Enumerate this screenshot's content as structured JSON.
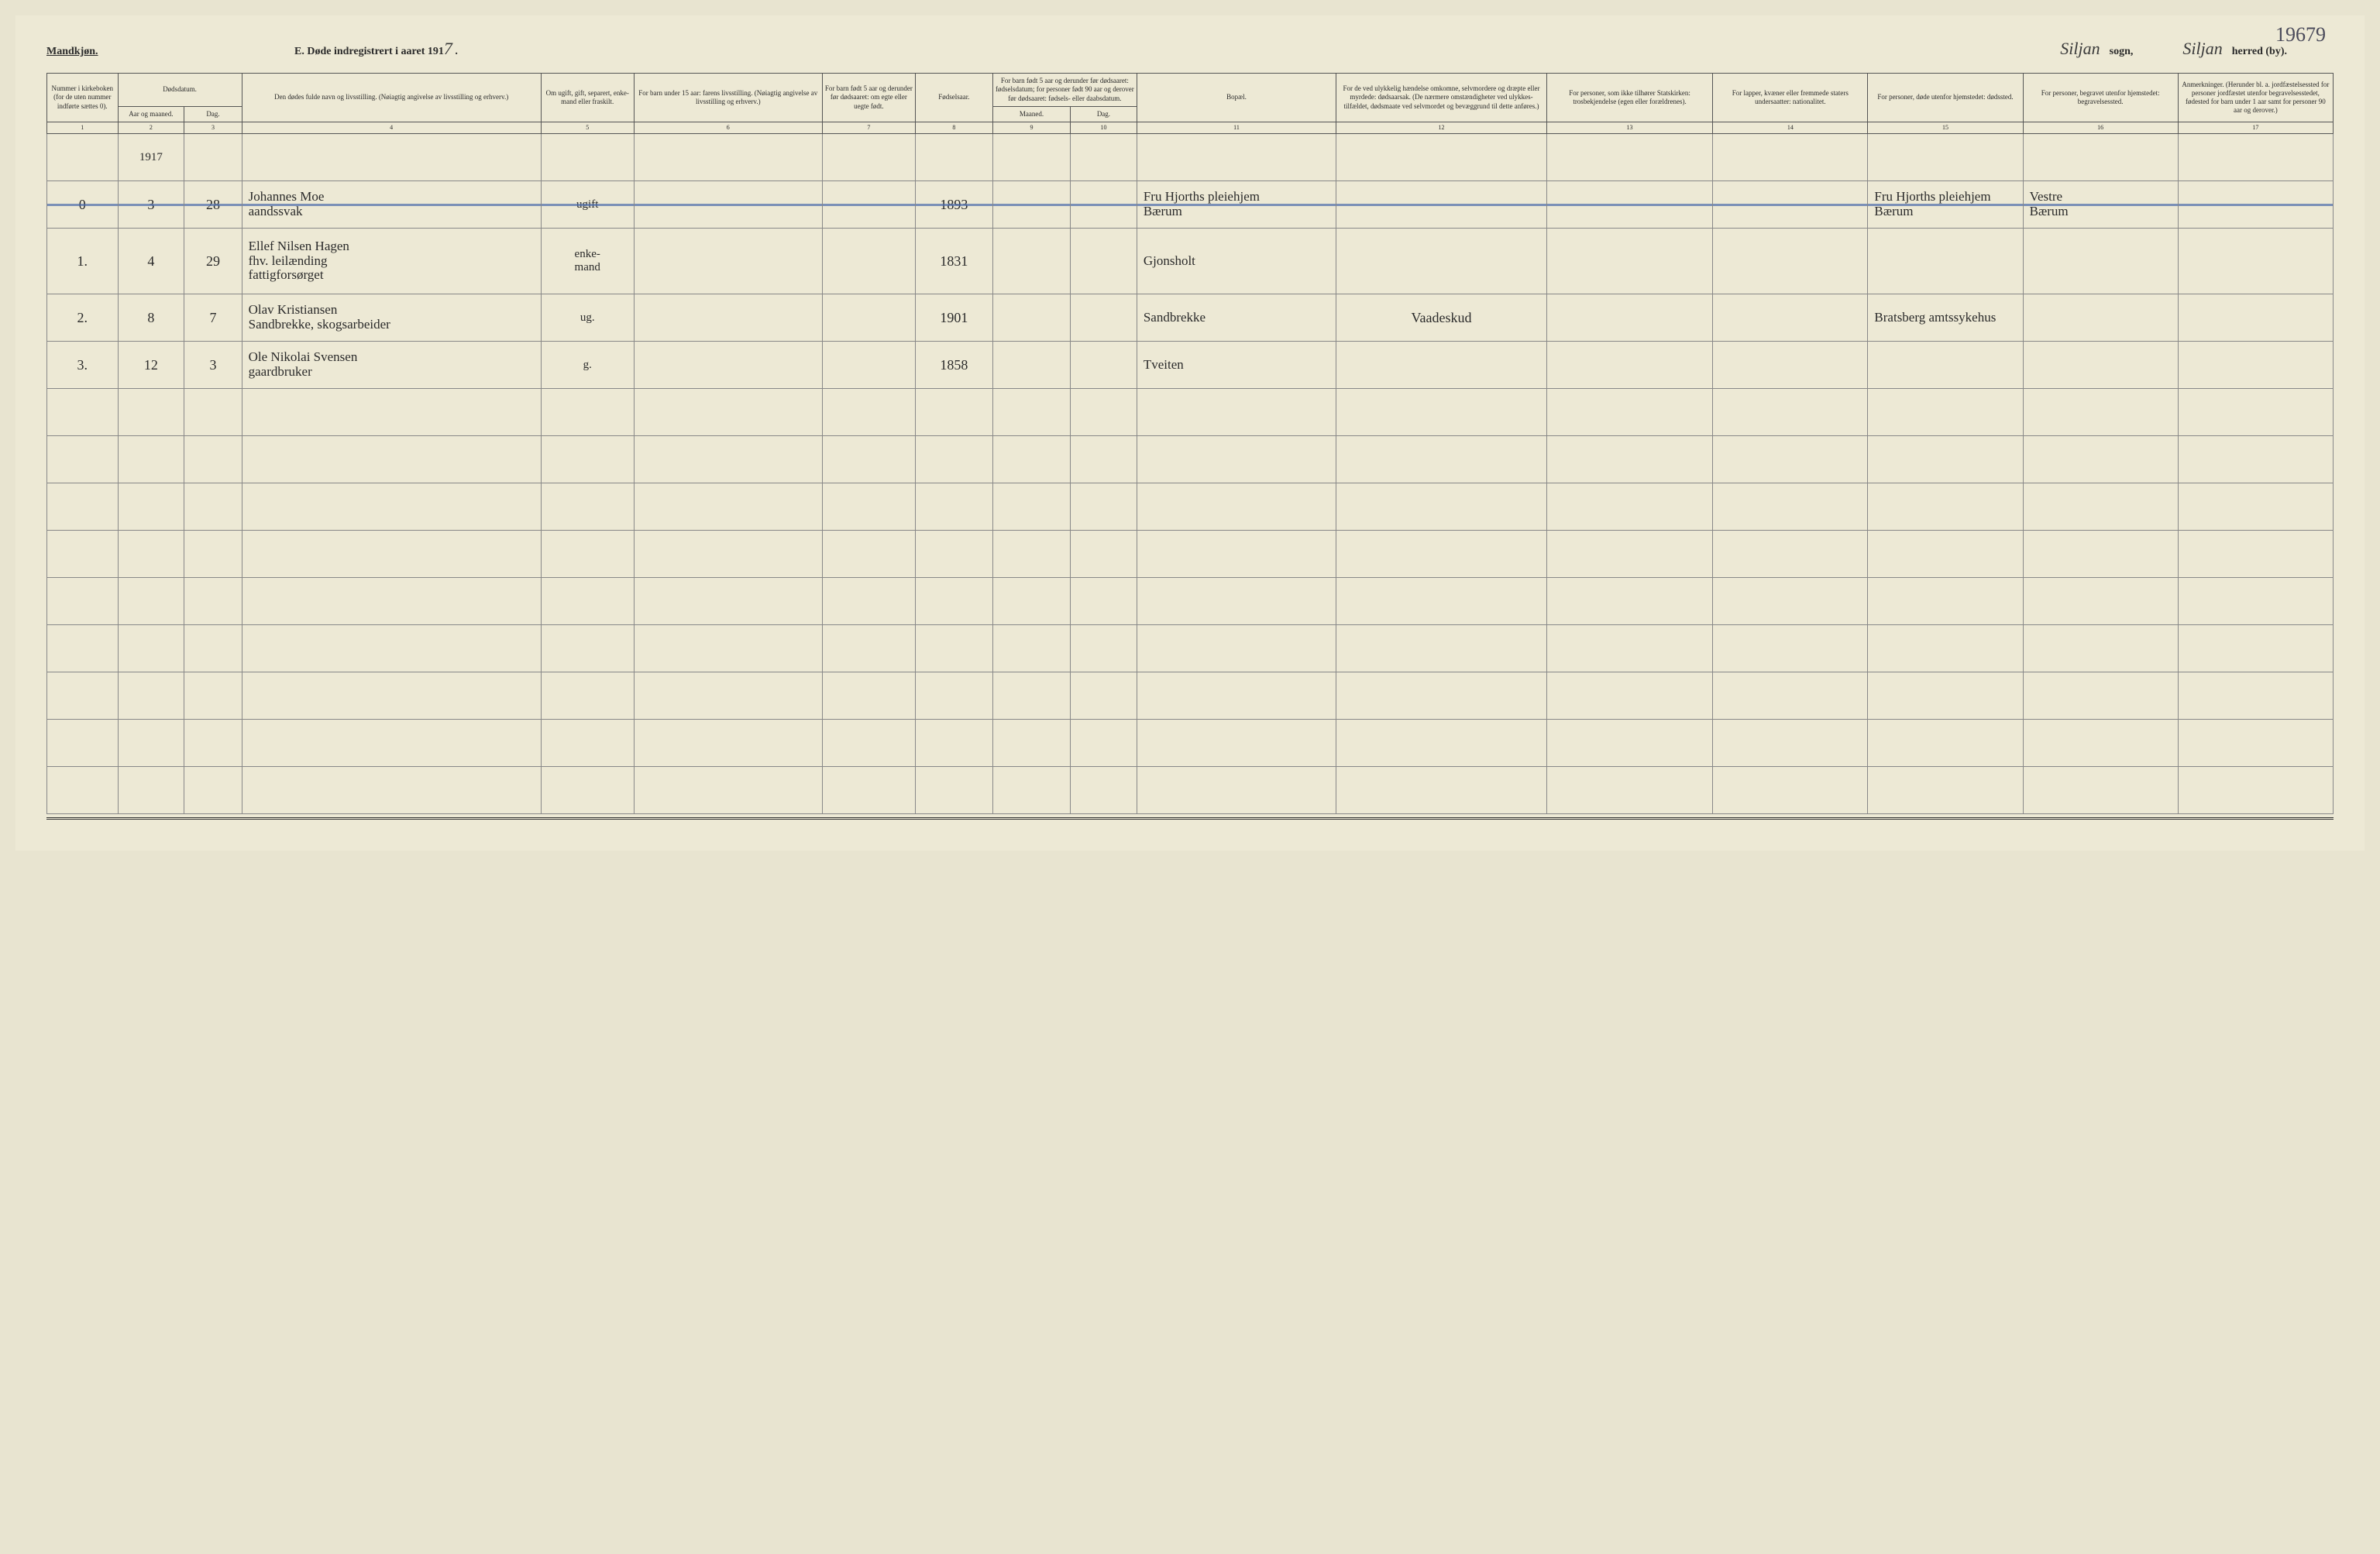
{
  "header": {
    "mandkjon": "Mandkjøn.",
    "title_prefix": "E.  Døde indregistrert i aaret 191",
    "year_suffix": "7",
    "sogn_hand": "Siljan",
    "sogn_label": "sogn,",
    "herred_hand": "Siljan",
    "herred_label": "herred (by).",
    "page_number": "19679"
  },
  "colors": {
    "paper": "#ede9d5",
    "ink": "#2a2a2a",
    "rule": "#555",
    "strike": "#4a6aaa"
  },
  "columns": {
    "c1": "Nummer i kirke­boken (for de uten nummer indførte sættes 0).",
    "c2a": "Dødsdatum.",
    "c2": "Aar og maaned.",
    "c3": "Dag.",
    "c4": "Den dødes fulde navn og livsstilling. (Nøiagtig angivelse av livsstilling og erhverv.)",
    "c5": "Om ugift, gift, separert, enke­mand eller fraskilt.",
    "c6": "For barn under 15 aar: farens livsstilling. (Nøiagtig angivelse av livsstilling og erhverv.)",
    "c7": "For barn født 5 aar og derunder før døds­aaret: om egte eller uegte født.",
    "c8": "Fødsels­aar.",
    "c9a": "For barn født 5 aar og der­under før dødsaaret: fødselsdatum; for personer født 90 aar og derover før dødsaaret: fødsels- eller daabsdatum.",
    "c9": "Maaned.",
    "c10": "Dag.",
    "c11": "Bopæl.",
    "c12": "For de ved ulykkelig hændelse omkomne, selvmordere og dræpte eller myrdede: dødsaarsak. (De nærmere omstæn­digheter ved ulykkes­tilfældet, dødsmaate ved selvmordet og bevæggrund til dette anføres.)",
    "c13": "For personer, som ikke tilhører Statskirken: trosbekjendelse (egen eller forældrenes).",
    "c14": "For lapper, kvæner eller fremmede staters undersaatter: nationalitet.",
    "c15": "For personer, døde utenfor hjemstedet: dødssted.",
    "c16": "For personer, begravet utenfor hjemstedet: begravelsessted.",
    "c17": "Anmerkninger. (Herunder bl. a. jordfæstelsessted for personer jordfæstet utenfor begravelses­stedet, fødested for barn under 1 aar samt for personer 90 aar og derover.)"
  },
  "colnums": [
    "1",
    "2",
    "3",
    "4",
    "5",
    "6",
    "7",
    "8",
    "9",
    "10",
    "11",
    "12",
    "13",
    "14",
    "15",
    "16",
    "17"
  ],
  "year_in_col2": "1917",
  "rows": [
    {
      "num": "0",
      "month": "3",
      "day": "28",
      "name": "Johannes Moe\naandssvak",
      "status": "ugift",
      "faren": "",
      "egte": "",
      "faar": "1893",
      "fm": "",
      "fd": "",
      "bopael": "Fru Hjorths pleiehjem\nBærum",
      "c12": "",
      "c13": "",
      "c14": "",
      "c15": "Fru Hjorths pleiehjem\nBærum",
      "c16": "Vestre\nBærum",
      "c17": "",
      "struck": true
    },
    {
      "num": "1.",
      "month": "4",
      "day": "29",
      "name": "Ellef Nilsen Hagen\nfhv. leilænding\nfattigforsørget",
      "status": "enke-\nmand",
      "faren": "",
      "egte": "",
      "faar": "1831",
      "fm": "",
      "fd": "",
      "bopael": "Gjonsholt",
      "c12": "",
      "c13": "",
      "c14": "",
      "c15": "",
      "c16": "",
      "c17": ""
    },
    {
      "num": "2.",
      "month": "8",
      "day": "7",
      "name": "Olav Kristiansen\nSandbrekke, skogsarbeider",
      "status": "ug.",
      "faren": "",
      "egte": "",
      "faar": "1901",
      "fm": "",
      "fd": "",
      "bopael": "Sandbrekke",
      "c12": "Vaadeskud",
      "c13": "",
      "c14": "",
      "c15": "Bratsberg amtssykehus",
      "c16": "",
      "c17": ""
    },
    {
      "num": "3.",
      "month": "12",
      "day": "3",
      "name": "Ole Nikolai Svensen\ngaardbruker",
      "status": "g.",
      "faren": "",
      "egte": "",
      "faar": "1858",
      "fm": "",
      "fd": "",
      "bopael": "Tveiten",
      "c12": "",
      "c13": "",
      "c14": "",
      "c15": "",
      "c16": "",
      "c17": ""
    }
  ],
  "blank_rows": 9
}
